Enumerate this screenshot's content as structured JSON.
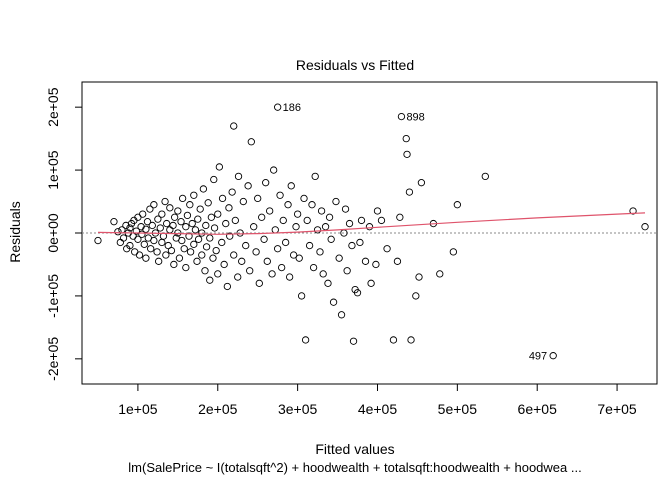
{
  "chart_data": {
    "type": "scatter",
    "title": "Residuals vs Fitted",
    "xlabel": "Fitted values",
    "ylabel": "Residuals",
    "subtitle": "lm(SalePrice ~ I(totalsqft^2) + hoodwealth + totalsqft:hoodwealth + hoodwea ...",
    "xlim": [
      30000,
      750000
    ],
    "ylim": [
      -240000,
      240000
    ],
    "x_ticks": [
      100000,
      200000,
      300000,
      400000,
      500000,
      600000,
      700000
    ],
    "x_tick_labels": [
      "1e+05",
      "2e+05",
      "3e+05",
      "4e+05",
      "5e+05",
      "6e+05",
      "7e+05"
    ],
    "y_ticks": [
      -200000,
      -100000,
      0,
      100000,
      200000
    ],
    "y_tick_labels": [
      "-2e+05",
      "-1e+05",
      "0e+00",
      "1e+05",
      "2e+05"
    ],
    "reference_line": {
      "y": 0,
      "style": "dotted",
      "color": "#888888"
    },
    "smooth_line": {
      "color": "#df536b",
      "x": [
        50000,
        100000,
        150000,
        200000,
        250000,
        300000,
        350000,
        400000,
        500000,
        600000,
        700000,
        735000
      ],
      "y": [
        1000,
        0,
        -1000,
        -2000,
        -1000,
        1500,
        5000,
        9000,
        17000,
        24000,
        30000,
        32000
      ]
    },
    "labeled_points": [
      {
        "label": "186",
        "x": 275000,
        "y": 200000
      },
      {
        "label": "898",
        "x": 430000,
        "y": 185000
      },
      {
        "label": "497",
        "x": 620000,
        "y": -195000
      }
    ],
    "points": [
      [
        50000,
        -12000
      ],
      [
        70000,
        18000
      ],
      [
        75000,
        2000
      ],
      [
        78000,
        -15000
      ],
      [
        80000,
        5000
      ],
      [
        82000,
        -8000
      ],
      [
        85000,
        12000
      ],
      [
        86000,
        -25000
      ],
      [
        88000,
        0
      ],
      [
        90000,
        8000
      ],
      [
        90000,
        -20000
      ],
      [
        92000,
        15000
      ],
      [
        94000,
        -5000
      ],
      [
        95000,
        20000
      ],
      [
        96000,
        -30000
      ],
      [
        98000,
        3000
      ],
      [
        100000,
        -10000
      ],
      [
        100000,
        25000
      ],
      [
        102000,
        -35000
      ],
      [
        104000,
        10000
      ],
      [
        105000,
        -2000
      ],
      [
        106000,
        30000
      ],
      [
        108000,
        -18000
      ],
      [
        110000,
        6000
      ],
      [
        110000,
        -40000
      ],
      [
        112000,
        18000
      ],
      [
        113000,
        -8000
      ],
      [
        115000,
        38000
      ],
      [
        116000,
        -25000
      ],
      [
        118000,
        12000
      ],
      [
        120000,
        -12000
      ],
      [
        120000,
        45000
      ],
      [
        122000,
        0
      ],
      [
        124000,
        -30000
      ],
      [
        125000,
        22000
      ],
      [
        126000,
        -45000
      ],
      [
        128000,
        8000
      ],
      [
        130000,
        -15000
      ],
      [
        130000,
        30000
      ],
      [
        132000,
        -5000
      ],
      [
        134000,
        50000
      ],
      [
        135000,
        -35000
      ],
      [
        136000,
        15000
      ],
      [
        138000,
        -20000
      ],
      [
        140000,
        5000
      ],
      [
        140000,
        40000
      ],
      [
        142000,
        -28000
      ],
      [
        144000,
        12000
      ],
      [
        145000,
        -50000
      ],
      [
        146000,
        25000
      ],
      [
        148000,
        -8000
      ],
      [
        150000,
        0
      ],
      [
        150000,
        35000
      ],
      [
        152000,
        -40000
      ],
      [
        154000,
        18000
      ],
      [
        155000,
        -12000
      ],
      [
        156000,
        55000
      ],
      [
        158000,
        -25000
      ],
      [
        160000,
        10000
      ],
      [
        160000,
        -55000
      ],
      [
        162000,
        28000
      ],
      [
        164000,
        -5000
      ],
      [
        165000,
        45000
      ],
      [
        166000,
        -30000
      ],
      [
        168000,
        15000
      ],
      [
        170000,
        -18000
      ],
      [
        170000,
        60000
      ],
      [
        172000,
        5000
      ],
      [
        174000,
        -45000
      ],
      [
        175000,
        22000
      ],
      [
        176000,
        -10000
      ],
      [
        178000,
        38000
      ],
      [
        180000,
        -35000
      ],
      [
        180000,
        0
      ],
      [
        182000,
        70000
      ],
      [
        184000,
        -60000
      ],
      [
        185000,
        12000
      ],
      [
        186000,
        -22000
      ],
      [
        188000,
        48000
      ],
      [
        190000,
        -8000
      ],
      [
        190000,
        -75000
      ],
      [
        192000,
        25000
      ],
      [
        194000,
        -40000
      ],
      [
        195000,
        85000
      ],
      [
        196000,
        8000
      ],
      [
        198000,
        -28000
      ],
      [
        200000,
        30000
      ],
      [
        200000,
        -65000
      ],
      [
        202000,
        105000
      ],
      [
        205000,
        -15000
      ],
      [
        206000,
        55000
      ],
      [
        208000,
        -50000
      ],
      [
        210000,
        15000
      ],
      [
        212000,
        -85000
      ],
      [
        214000,
        40000
      ],
      [
        215000,
        -5000
      ],
      [
        218000,
        65000
      ],
      [
        220000,
        -35000
      ],
      [
        220000,
        170000
      ],
      [
        222000,
        20000
      ],
      [
        225000,
        -70000
      ],
      [
        226000,
        90000
      ],
      [
        228000,
        0
      ],
      [
        230000,
        -45000
      ],
      [
        232000,
        50000
      ],
      [
        235000,
        -20000
      ],
      [
        238000,
        75000
      ],
      [
        240000,
        -60000
      ],
      [
        242000,
        145000
      ],
      [
        245000,
        10000
      ],
      [
        248000,
        -30000
      ],
      [
        250000,
        55000
      ],
      [
        252000,
        -80000
      ],
      [
        255000,
        25000
      ],
      [
        258000,
        -10000
      ],
      [
        260000,
        80000
      ],
      [
        262000,
        -45000
      ],
      [
        265000,
        35000
      ],
      [
        268000,
        -65000
      ],
      [
        270000,
        100000
      ],
      [
        272000,
        5000
      ],
      [
        275000,
        -25000
      ],
      [
        278000,
        60000
      ],
      [
        280000,
        -55000
      ],
      [
        282000,
        20000
      ],
      [
        285000,
        -15000
      ],
      [
        288000,
        45000
      ],
      [
        290000,
        -70000
      ],
      [
        292000,
        75000
      ],
      [
        295000,
        -35000
      ],
      [
        298000,
        10000
      ],
      [
        300000,
        30000
      ],
      [
        302000,
        -40000
      ],
      [
        305000,
        -100000
      ],
      [
        308000,
        55000
      ],
      [
        310000,
        -170000
      ],
      [
        312000,
        20000
      ],
      [
        315000,
        -20000
      ],
      [
        318000,
        45000
      ],
      [
        320000,
        -55000
      ],
      [
        322000,
        90000
      ],
      [
        325000,
        5000
      ],
      [
        328000,
        -30000
      ],
      [
        330000,
        35000
      ],
      [
        332000,
        -65000
      ],
      [
        335000,
        10000
      ],
      [
        338000,
        -80000
      ],
      [
        340000,
        25000
      ],
      [
        342000,
        -10000
      ],
      [
        345000,
        -110000
      ],
      [
        348000,
        50000
      ],
      [
        352000,
        -40000
      ],
      [
        355000,
        -130000
      ],
      [
        358000,
        0
      ],
      [
        360000,
        38000
      ],
      [
        362000,
        -60000
      ],
      [
        365000,
        15000
      ],
      [
        368000,
        -20000
      ],
      [
        370000,
        -172000
      ],
      [
        372000,
        -90000
      ],
      [
        375000,
        -95000
      ],
      [
        378000,
        -15000
      ],
      [
        380000,
        20000
      ],
      [
        385000,
        -45000
      ],
      [
        390000,
        10000
      ],
      [
        392000,
        -80000
      ],
      [
        398000,
        -50000
      ],
      [
        400000,
        35000
      ],
      [
        405000,
        20000
      ],
      [
        412000,
        -25000
      ],
      [
        420000,
        -170000
      ],
      [
        425000,
        -45000
      ],
      [
        428000,
        25000
      ],
      [
        436000,
        150000
      ],
      [
        437000,
        125000
      ],
      [
        440000,
        65000
      ],
      [
        442000,
        -170000
      ],
      [
        448000,
        -100000
      ],
      [
        452000,
        -70000
      ],
      [
        455000,
        80000
      ],
      [
        470000,
        15000
      ],
      [
        478000,
        -65000
      ],
      [
        495000,
        -30000
      ],
      [
        500000,
        45000
      ],
      [
        535000,
        90000
      ],
      [
        720000,
        35000
      ],
      [
        735000,
        10000
      ]
    ]
  }
}
